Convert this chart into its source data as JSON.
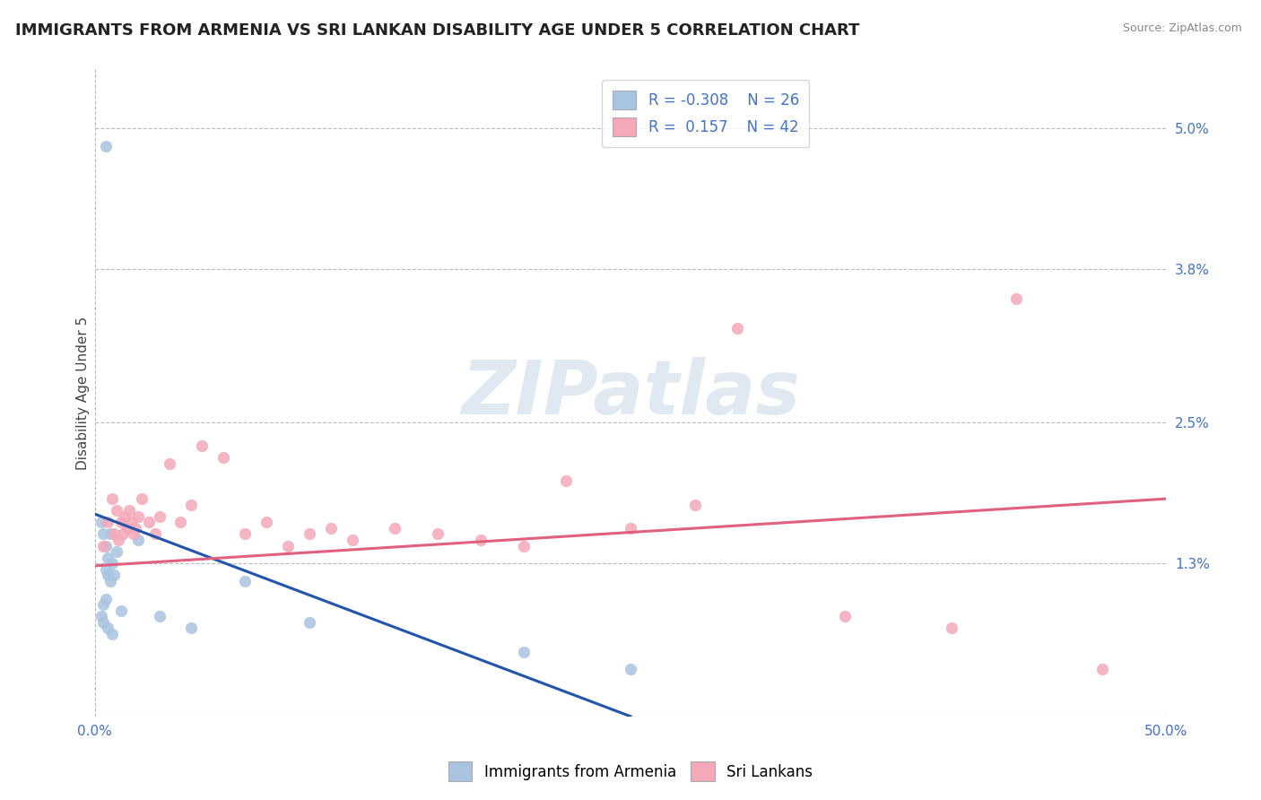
{
  "title": "IMMIGRANTS FROM ARMENIA VS SRI LANKAN DISABILITY AGE UNDER 5 CORRELATION CHART",
  "source": "Source: ZipAtlas.com",
  "ylabel": "Disability Age Under 5",
  "legend_label1": "Immigrants from Armenia",
  "legend_label2": "Sri Lankans",
  "R1": -0.308,
  "N1": 26,
  "R2": 0.157,
  "N2": 42,
  "xlim": [
    0.0,
    50.0
  ],
  "ylim": [
    0.0,
    5.5
  ],
  "yticks": [
    0.0,
    1.3,
    2.5,
    3.8,
    5.0
  ],
  "xticks": [
    0.0,
    50.0
  ],
  "xtick_labels": [
    "0.0%",
    "50.0%"
  ],
  "ytick_labels": [
    "",
    "1.3%",
    "2.5%",
    "3.8%",
    "5.0%"
  ],
  "color_armenia": "#a8c4e0",
  "color_srilanka": "#f4a8b8",
  "line_color_armenia": "#2255aa",
  "line_color_srilanka": "#e06080",
  "background_color": "#ffffff",
  "grid_color": "#bbbbbb",
  "watermark": "ZIPatlas",
  "title_fontsize": 13,
  "axis_label_fontsize": 11,
  "tick_fontsize": 11,
  "armenia_x": [
    0.5,
    0.3,
    0.4,
    0.5,
    0.6,
    0.7,
    0.5,
    0.6,
    0.7,
    0.8,
    0.9,
    1.0,
    0.4,
    0.5,
    0.3,
    0.4,
    0.6,
    0.8,
    1.2,
    2.0,
    3.0,
    4.5,
    7.0,
    10.0,
    20.0,
    25.0
  ],
  "armenia_y": [
    4.85,
    1.65,
    1.55,
    1.45,
    1.35,
    1.55,
    1.25,
    1.2,
    1.15,
    1.3,
    1.2,
    1.4,
    0.95,
    1.0,
    0.85,
    0.8,
    0.75,
    0.7,
    0.9,
    1.5,
    0.85,
    0.75,
    1.15,
    0.8,
    0.55,
    0.4
  ],
  "srilanka_x": [
    0.4,
    0.6,
    0.8,
    0.9,
    1.0,
    1.1,
    1.2,
    1.3,
    1.4,
    1.5,
    1.6,
    1.7,
    1.8,
    1.9,
    2.0,
    2.2,
    2.5,
    2.8,
    3.0,
    3.5,
    4.0,
    4.5,
    5.0,
    6.0,
    7.0,
    8.0,
    9.0,
    10.0,
    11.0,
    12.0,
    14.0,
    16.0,
    18.0,
    20.0,
    22.0,
    25.0,
    28.0,
    30.0,
    35.0,
    40.0,
    43.0,
    47.0
  ],
  "srilanka_y": [
    1.45,
    1.65,
    1.85,
    1.55,
    1.75,
    1.5,
    1.65,
    1.55,
    1.7,
    1.6,
    1.75,
    1.65,
    1.55,
    1.6,
    1.7,
    1.85,
    1.65,
    1.55,
    1.7,
    2.15,
    1.65,
    1.8,
    2.3,
    2.2,
    1.55,
    1.65,
    1.45,
    1.55,
    1.6,
    1.5,
    1.6,
    1.55,
    1.5,
    1.45,
    2.0,
    1.6,
    1.8,
    3.3,
    0.85,
    0.75,
    3.55,
    0.4
  ],
  "trendline_armenia_x0": 0.0,
  "trendline_armenia_y0": 1.72,
  "trendline_armenia_x1": 25.0,
  "trendline_armenia_y1": 0.0,
  "trendline_sri_x0": 0.0,
  "trendline_sri_y0": 1.28,
  "trendline_sri_x1": 50.0,
  "trendline_sri_y1": 1.85
}
